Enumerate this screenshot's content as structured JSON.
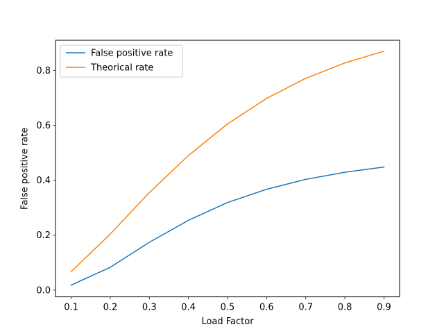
{
  "chart_data": {
    "type": "line",
    "title": "",
    "xlabel": "Load Factor",
    "ylabel": "False positive rate",
    "x": [
      0.1,
      0.2,
      0.3,
      0.4,
      0.5,
      0.6,
      0.7,
      0.8,
      0.9
    ],
    "xlim": [
      0.06,
      0.94
    ],
    "ylim": [
      -0.0246,
      0.9095
    ],
    "xticks": [
      0.1,
      0.2,
      0.3,
      0.4,
      0.5,
      0.6,
      0.7,
      0.8,
      0.9
    ],
    "xtick_labels": [
      "0.1",
      "0.2",
      "0.3",
      "0.4",
      "0.5",
      "0.6",
      "0.7",
      "0.8",
      "0.9"
    ],
    "yticks": [
      0.0,
      0.2,
      0.4,
      0.6,
      0.8
    ],
    "ytick_labels": [
      "0.0",
      "0.2",
      "0.4",
      "0.6",
      "0.8"
    ],
    "grid": false,
    "legend_position": "top-left",
    "series": [
      {
        "name": "False positive rate",
        "color": "#1f77b4",
        "values": [
          0.018,
          0.083,
          0.174,
          0.254,
          0.319,
          0.367,
          0.403,
          0.429,
          0.448
        ]
      },
      {
        "name": "Theorical rate",
        "color": "#ff7f0e",
        "values": [
          0.067,
          0.204,
          0.355,
          0.49,
          0.605,
          0.698,
          0.771,
          0.827,
          0.87
        ]
      }
    ]
  }
}
